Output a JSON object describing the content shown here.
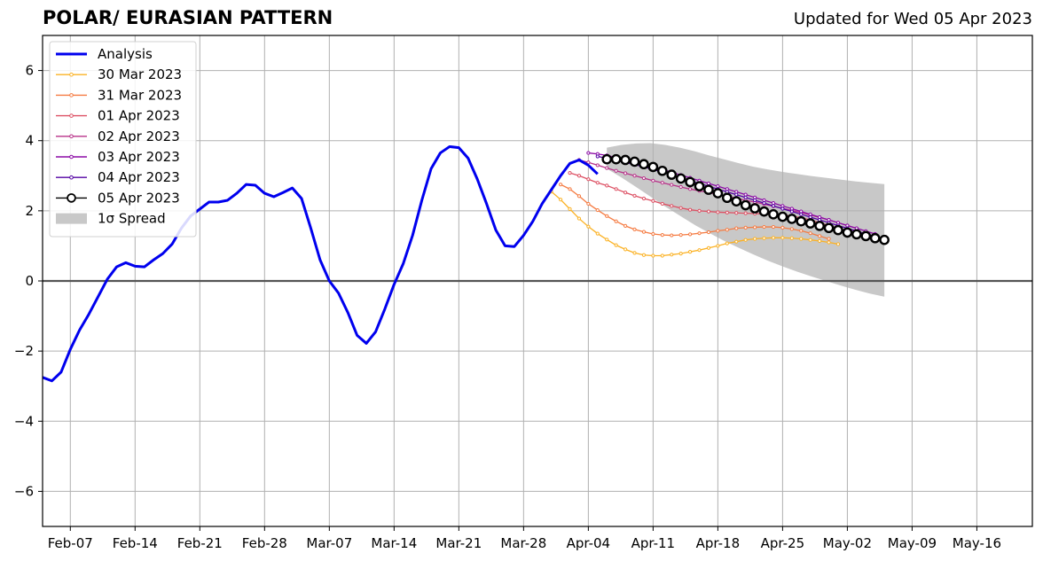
{
  "header": {
    "title": "POLAR/ EURASIAN  PATTERN",
    "updated": "Updated for Wed 05 Apr 2023"
  },
  "chart_data": {
    "type": "line",
    "title": "POLAR/ EURASIAN  PATTERN",
    "xlabel": "",
    "ylabel": "",
    "x_type": "date",
    "xlim": [
      "2023-02-04",
      "2023-05-22"
    ],
    "ylim": [
      -7,
      7
    ],
    "x_ticks": [
      {
        "date": "2023-02-07",
        "label": "Feb-07"
      },
      {
        "date": "2023-02-14",
        "label": "Feb-14"
      },
      {
        "date": "2023-02-21",
        "label": "Feb-21"
      },
      {
        "date": "2023-02-28",
        "label": "Feb-28"
      },
      {
        "date": "2023-03-07",
        "label": "Mar-07"
      },
      {
        "date": "2023-03-14",
        "label": "Mar-14"
      },
      {
        "date": "2023-03-21",
        "label": "Mar-21"
      },
      {
        "date": "2023-03-28",
        "label": "Mar-28"
      },
      {
        "date": "2023-04-04",
        "label": "Apr-04"
      },
      {
        "date": "2023-04-11",
        "label": "Apr-11"
      },
      {
        "date": "2023-04-18",
        "label": "Apr-18"
      },
      {
        "date": "2023-04-25",
        "label": "Apr-25"
      },
      {
        "date": "2023-05-02",
        "label": "May-02"
      },
      {
        "date": "2023-05-09",
        "label": "May-09"
      },
      {
        "date": "2023-05-16",
        "label": "May-16"
      }
    ],
    "y_ticks": [
      {
        "value": -6,
        "label": "−6"
      },
      {
        "value": -4,
        "label": "−4"
      },
      {
        "value": -2,
        "label": "−2"
      },
      {
        "value": 0,
        "label": "0"
      },
      {
        "value": 2,
        "label": "2"
      },
      {
        "value": 4,
        "label": "4"
      },
      {
        "value": 6,
        "label": "6"
      }
    ],
    "grid": true,
    "legend_position": "top-left",
    "analysis": {
      "name": "Analysis",
      "color": "#0000ee",
      "x_start": "2023-02-04",
      "values": [
        -2.75,
        -2.85,
        -2.6,
        -1.95,
        -1.4,
        -0.95,
        -0.45,
        0.05,
        0.4,
        0.52,
        0.42,
        0.4,
        0.6,
        0.78,
        1.05,
        1.5,
        1.85,
        2.05,
        2.25,
        2.25,
        2.3,
        2.5,
        2.75,
        2.73,
        2.5,
        2.4,
        2.52,
        2.65,
        2.35,
        1.5,
        0.6,
        0.0,
        -0.35,
        -0.9,
        -1.55,
        -1.78,
        -1.45,
        -0.8,
        -0.1,
        0.5,
        1.3,
        2.3,
        3.2,
        3.65,
        3.83,
        3.8,
        3.5,
        2.9,
        2.2,
        1.45,
        1.0,
        0.98,
        1.3,
        1.7,
        2.2,
        2.6,
        3.0,
        3.35,
        3.45,
        3.3,
        3.05
      ]
    },
    "series": [
      {
        "name": "30 Mar 2023",
        "color": "#fbb225",
        "x_start": "2023-03-31",
        "values": [
          2.55,
          2.32,
          2.05,
          1.78,
          1.55,
          1.35,
          1.18,
          1.02,
          0.9,
          0.8,
          0.74,
          0.72,
          0.72,
          0.75,
          0.78,
          0.83,
          0.88,
          0.94,
          1.0,
          1.07,
          1.12,
          1.17,
          1.2,
          1.22,
          1.23,
          1.23,
          1.22,
          1.2,
          1.17,
          1.14,
          1.1,
          1.05
        ]
      },
      {
        "name": "31 Mar 2023",
        "color": "#f57b42",
        "x_start": "2023-04-01",
        "values": [
          2.75,
          2.62,
          2.42,
          2.2,
          2.02,
          1.85,
          1.7,
          1.57,
          1.47,
          1.4,
          1.34,
          1.31,
          1.3,
          1.31,
          1.33,
          1.36,
          1.39,
          1.43,
          1.46,
          1.5,
          1.52,
          1.53,
          1.54,
          1.54,
          1.52,
          1.48,
          1.43,
          1.36,
          1.28,
          1.2
        ]
      },
      {
        "name": "01 Apr 2023",
        "color": "#dd5164",
        "x_start": "2023-04-02",
        "values": [
          3.08,
          3.0,
          2.9,
          2.8,
          2.72,
          2.62,
          2.52,
          2.43,
          2.35,
          2.28,
          2.2,
          2.14,
          2.08,
          2.03,
          2.0,
          1.98,
          1.96,
          1.95,
          1.94,
          1.93,
          1.92,
          1.91,
          1.9,
          1.88,
          1.85,
          1.8,
          1.74,
          1.66,
          1.58,
          1.5,
          1.4
        ]
      },
      {
        "name": "02 Apr 2023",
        "color": "#b83289",
        "x_start": "2023-04-03",
        "values": [
          3.45,
          3.38,
          3.3,
          3.22,
          3.14,
          3.07,
          3.0,
          2.93,
          2.86,
          2.8,
          2.74,
          2.68,
          2.62,
          2.57,
          2.52,
          2.46,
          2.41,
          2.36,
          2.3,
          2.25,
          2.19,
          2.13,
          2.07,
          2.01,
          1.95,
          1.88,
          1.81,
          1.74,
          1.66,
          1.58,
          1.5
        ]
      },
      {
        "name": "03 Apr 2023",
        "color": "#8b0aa5",
        "x_start": "2023-04-04",
        "values": [
          3.65,
          3.62,
          3.58,
          3.52,
          3.46,
          3.4,
          3.33,
          3.26,
          3.18,
          3.1,
          3.02,
          2.94,
          2.86,
          2.78,
          2.7,
          2.62,
          2.54,
          2.46,
          2.38,
          2.3,
          2.22,
          2.14,
          2.06,
          1.98,
          1.9,
          1.82,
          1.74,
          1.66,
          1.58,
          1.5,
          1.42,
          1.34
        ]
      },
      {
        "name": "04 Apr 2023",
        "color": "#5302a3",
        "x_start": "2023-04-05",
        "values": [
          3.55,
          3.5,
          3.44,
          3.38,
          3.32,
          3.25,
          3.18,
          3.1,
          3.02,
          2.94,
          2.86,
          2.78,
          2.7,
          2.62,
          2.54,
          2.46,
          2.38,
          2.3,
          2.22,
          2.14,
          2.06,
          1.98,
          1.9,
          1.82,
          1.74,
          1.66,
          1.58,
          1.5,
          1.42,
          1.34,
          1.26
        ]
      },
      {
        "name": "05 Apr 2023",
        "color": "#000000",
        "x_start": "2023-04-06",
        "values": [
          3.47,
          3.47,
          3.45,
          3.4,
          3.33,
          3.25,
          3.14,
          3.03,
          2.92,
          2.82,
          2.7,
          2.6,
          2.5,
          2.37,
          2.27,
          2.16,
          2.07,
          1.98,
          1.9,
          1.83,
          1.77,
          1.7,
          1.64,
          1.57,
          1.51,
          1.45,
          1.38,
          1.33,
          1.28,
          1.22,
          1.17
        ]
      }
    ],
    "spread": {
      "name": "1σ Spread",
      "color": "#c8c8c8",
      "x_start": "2023-04-06",
      "x_end": "2023-05-06",
      "upper": [
        3.8,
        3.88,
        3.92,
        3.93,
        3.88,
        3.8,
        3.7,
        3.58,
        3.47,
        3.36,
        3.26,
        3.18,
        3.11,
        3.05,
        2.99,
        2.94,
        2.89,
        2.84,
        2.8,
        2.76
      ],
      "lower": [
        3.2,
        2.95,
        2.68,
        2.4,
        2.12,
        1.86,
        1.6,
        1.37,
        1.15,
        0.95,
        0.76,
        0.58,
        0.42,
        0.27,
        0.13,
        0.0,
        -0.13,
        -0.25,
        -0.36,
        -0.45
      ]
    }
  }
}
